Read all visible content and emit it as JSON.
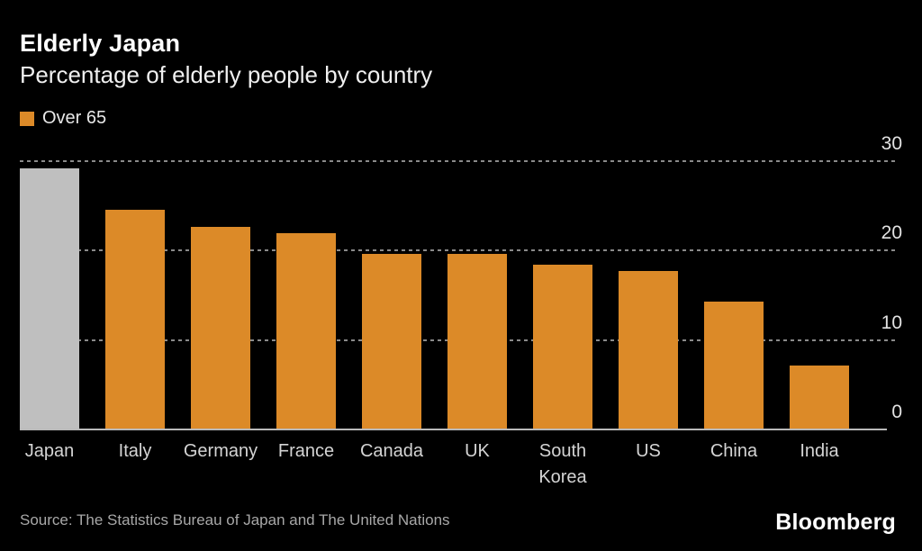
{
  "header": {
    "title": "Elderly Japan",
    "subtitle": "Percentage of elderly people by country"
  },
  "legend": {
    "label": "Over 65",
    "swatch_color": "#dc8a28"
  },
  "chart_data": {
    "type": "bar",
    "title": "Elderly Japan",
    "subtitle": "Percentage of elderly people by country",
    "series_name": "Over 65",
    "categories": [
      "Japan",
      "Italy",
      "Germany",
      "France",
      "Canada",
      "UK",
      "South Korea",
      "US",
      "China",
      "India"
    ],
    "values": [
      29.1,
      24.5,
      22.6,
      21.9,
      19.6,
      19.6,
      18.4,
      17.7,
      14.3,
      7.1
    ],
    "xlabel": "",
    "ylabel": "",
    "ylim": [
      0,
      30
    ],
    "yticks": [
      0,
      10,
      20,
      30
    ],
    "ytick_side": "right",
    "grid": "horizontal-dotted",
    "legend_position": "top-left",
    "highlight": {
      "category": "Japan",
      "color": "#bfbfbf"
    },
    "bar_color": "#dc8a28"
  },
  "footer": {
    "source": "Source: The Statistics Bureau of Japan and The United Nations",
    "brand": "Bloomberg"
  },
  "colors": {
    "background": "#000000",
    "bar_orange": "#dc8a28",
    "bar_highlight_gray": "#bfbfbf",
    "gridline": "#8a8a8a",
    "axis_line": "#b9b9b9",
    "title_text": "#ffffff",
    "muted_text": "#a8a8a8"
  }
}
